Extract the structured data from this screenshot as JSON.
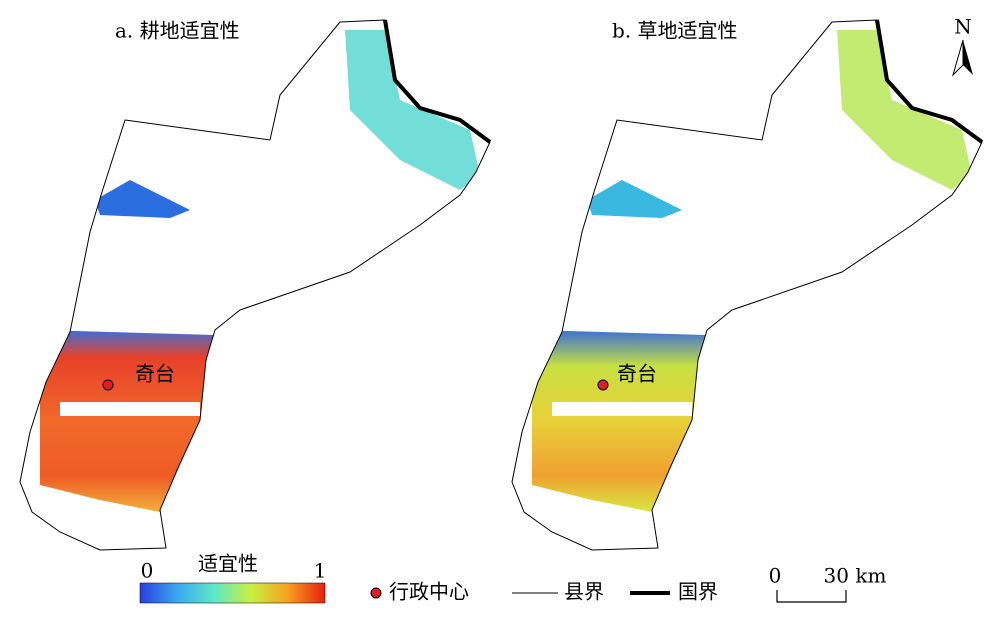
{
  "panels": [
    {
      "title": "a. 耕地适宜性",
      "center_label": "奇台"
    },
    {
      "title": "b. 草地适宜性",
      "center_label": "奇台"
    }
  ],
  "north_arrow": "N",
  "colorbar": {
    "title": "适宜性",
    "min": 0,
    "max": 1
  },
  "legend": {
    "items": [
      "行政中心",
      "县界",
      "国界"
    ]
  },
  "scale_bar": {
    "start": 0,
    "end": "30 km"
  }
}
